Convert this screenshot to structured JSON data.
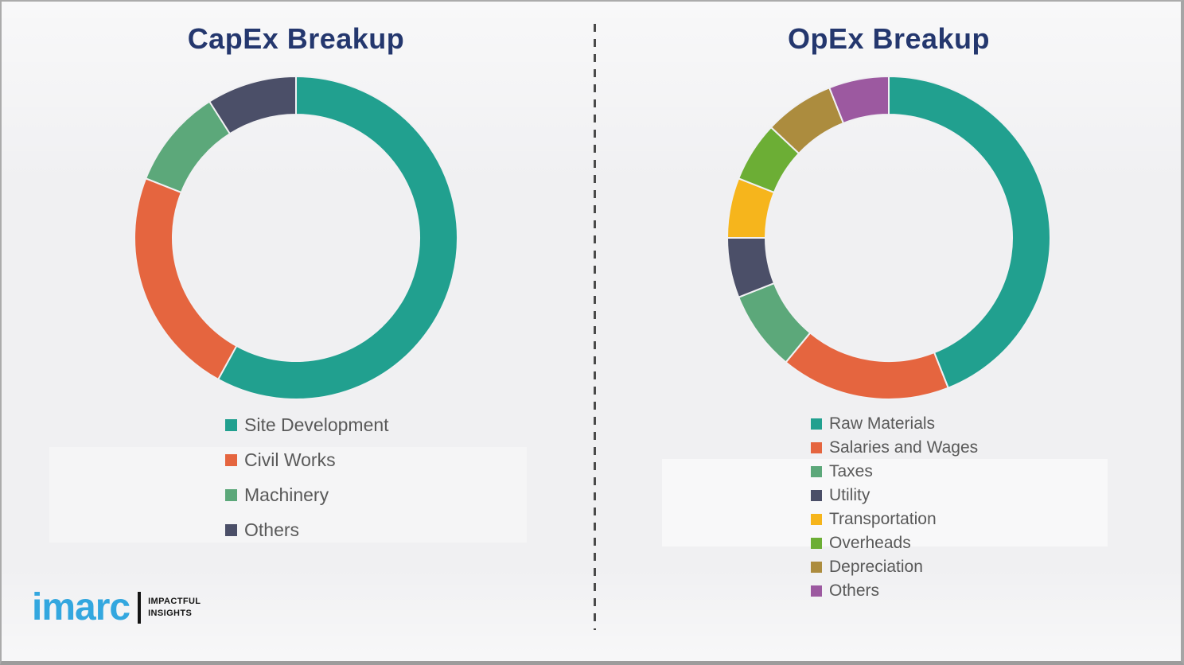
{
  "chart_data": [
    {
      "type": "pie",
      "donut": true,
      "title": "CapEx Breakup",
      "labels": [
        "Site Development",
        "Civil Works",
        "Machinery",
        "Others"
      ],
      "values": [
        58,
        23,
        10,
        9
      ],
      "values_note": "percent, estimated from arc angles (no numeric labels shown)",
      "colors": [
        "#21a08f",
        "#e5653f",
        "#5ca87a",
        "#4b4f68"
      ],
      "legend_position": "bottom",
      "start_angle_deg": 0,
      "direction": "clockwise"
    },
    {
      "type": "pie",
      "donut": true,
      "title": "OpEx Breakup",
      "labels": [
        "Raw Materials",
        "Salaries and Wages",
        "Taxes",
        "Utility",
        "Transportation",
        "Overheads",
        "Depreciation",
        "Others"
      ],
      "values": [
        44,
        17,
        8,
        6,
        6,
        6,
        7,
        6
      ],
      "values_note": "percent, estimated from arc angles (no numeric labels shown)",
      "colors": [
        "#21a08f",
        "#e5653f",
        "#5ca87a",
        "#4b4f68",
        "#f6b51c",
        "#6cae35",
        "#ac8c3e",
        "#9c59a0"
      ],
      "legend_position": "bottom",
      "start_angle_deg": 0,
      "direction": "clockwise"
    }
  ],
  "logo": {
    "brand": "imarc",
    "tagline_line1": "IMPACTFUL",
    "tagline_line2": "INSIGHTS",
    "brand_color": "#33a7df"
  },
  "style": {
    "title_color": "#24376e",
    "legend_text_color": "#595959",
    "background": "#f0f0f2",
    "divider_color": "#4a4a4a"
  }
}
